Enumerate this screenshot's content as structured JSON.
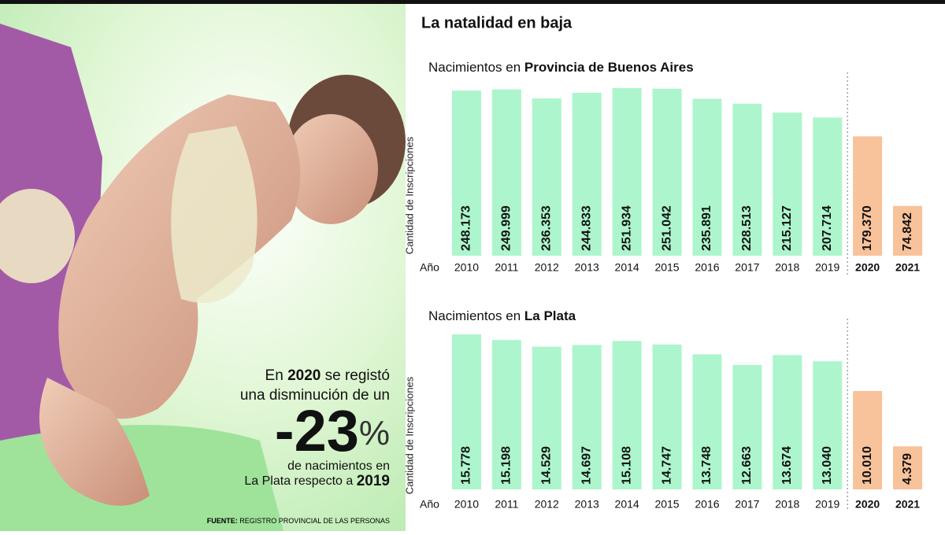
{
  "title": "La natalidad en baja",
  "callout": {
    "line1_pre": "En",
    "line1_bold": "2020",
    "line1_post": "se registó",
    "line2": "una disminución de un",
    "big_number": "-23",
    "big_unit": "%",
    "line3": "de nacimientos en",
    "line4_pre": "La Plata respecto a",
    "line4_bold": "2019"
  },
  "source": {
    "label": "FUENTE:",
    "text": "REGISTRO PROVINCIAL DE LAS PERSONAS"
  },
  "chart_data": [
    {
      "type": "bar",
      "title": "Nacimientos en",
      "title_emphasis": "Provincia de Buenos Aires",
      "y_label": "Cantidad de Inscripciones",
      "x_label": "Año",
      "categories": [
        "2010",
        "2011",
        "2012",
        "2013",
        "2014",
        "2015",
        "2016",
        "2017",
        "2018",
        "2019",
        "2020",
        "2021"
      ],
      "values": [
        248173,
        249999,
        236353,
        244833,
        251934,
        251042,
        235891,
        228513,
        215127,
        207714,
        179370,
        74842
      ],
      "value_labels": [
        "248.173",
        "249.999",
        "236.353",
        "244.833",
        "251.934",
        "251.042",
        "235.891",
        "228.513",
        "215.127",
        "207.714",
        "179.370",
        "74.842"
      ],
      "highlight": [
        false,
        false,
        false,
        false,
        false,
        false,
        false,
        false,
        false,
        false,
        true,
        true
      ],
      "color": "#adf5cc",
      "highlight_color": "#f8c29b"
    },
    {
      "type": "bar",
      "title": "Nacimientos en",
      "title_emphasis": "La Plata",
      "y_label": "Cantidad de Inscripciones",
      "x_label": "Año",
      "categories": [
        "2010",
        "2011",
        "2012",
        "2013",
        "2014",
        "2015",
        "2016",
        "2017",
        "2018",
        "2019",
        "2020",
        "2021"
      ],
      "values": [
        15778,
        15198,
        14529,
        14697,
        15108,
        14747,
        13748,
        12663,
        13674,
        13040,
        10010,
        4379
      ],
      "value_labels": [
        "15.778",
        "15.198",
        "14.529",
        "14.697",
        "15.108",
        "14.747",
        "13.748",
        "12.663",
        "13.674",
        "13.040",
        "10.010",
        "4.379"
      ],
      "highlight": [
        false,
        false,
        false,
        false,
        false,
        false,
        false,
        false,
        false,
        false,
        true,
        true
      ],
      "color": "#adf5cc",
      "highlight_color": "#f8c29b"
    }
  ]
}
